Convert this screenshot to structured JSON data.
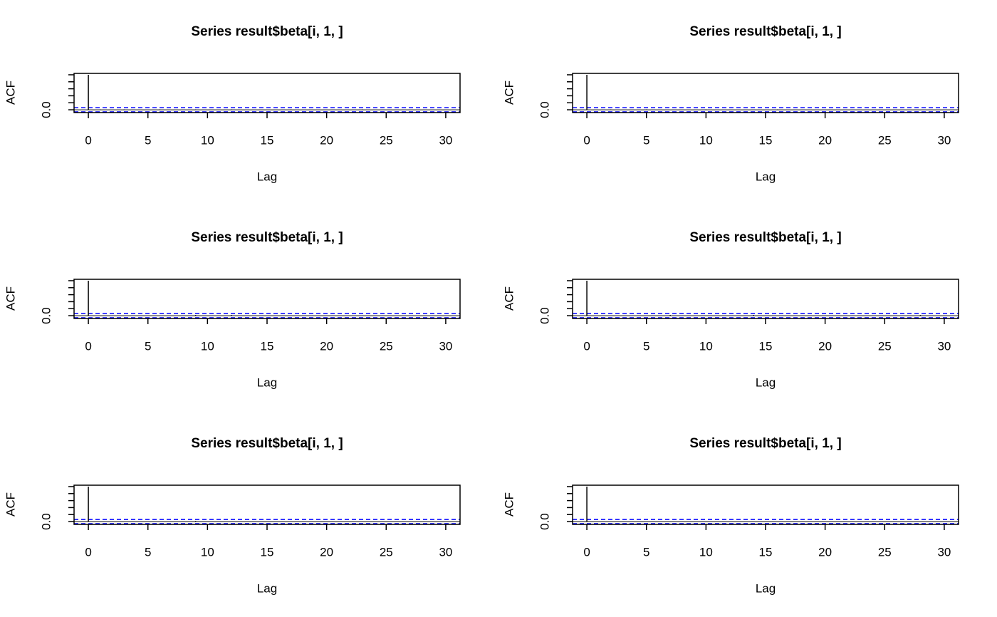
{
  "chart_data": [
    {
      "type": "acf",
      "title": "Series  result$beta[i, 1, ]",
      "xlabel": "Lag",
      "ylabel": "ACF",
      "x": [
        0,
        1,
        2,
        3,
        4,
        5,
        6,
        7,
        8,
        9,
        10,
        11,
        12,
        13,
        14,
        15,
        16,
        17,
        18,
        19,
        20,
        21,
        22,
        23,
        24,
        25,
        26,
        27,
        28,
        29,
        30
      ],
      "values": [
        1,
        0.01,
        0,
        0.01,
        0,
        0,
        0.01,
        0,
        0,
        0.01,
        0,
        0,
        0.01,
        0,
        0,
        0,
        0,
        0.01,
        0,
        0,
        0,
        0,
        0,
        0.01,
        0,
        0,
        0,
        0,
        0,
        0,
        0
      ],
      "color": "#000000",
      "ci": 0.06,
      "ci_color": "#0000ff",
      "xlim": [
        -1.2,
        31.2
      ],
      "ylim": [
        -0.08,
        1.04
      ],
      "xticks": [
        0,
        5,
        10,
        15,
        20,
        25,
        30
      ],
      "yticks": [
        {
          "value": 0,
          "label": "0.0"
        },
        {
          "value": 0.2,
          "label": null
        },
        {
          "value": 0.4,
          "label": null
        },
        {
          "value": 0.6,
          "label": null
        },
        {
          "value": 0.8,
          "label": null
        },
        {
          "value": 1,
          "label": null
        }
      ]
    },
    {
      "type": "acf",
      "title": "Series  result$beta[i, 1, ]",
      "xlabel": "Lag",
      "ylabel": "ACF",
      "x": [
        0,
        1,
        2,
        3,
        4,
        5,
        6,
        7,
        8,
        9,
        10,
        11,
        12,
        13,
        14,
        15,
        16,
        17,
        18,
        19,
        20,
        21,
        22,
        23,
        24,
        25,
        26,
        27,
        28,
        29,
        30
      ],
      "values": [
        1,
        0,
        0.01,
        0,
        0,
        0.01,
        0,
        0,
        0,
        0,
        0.01,
        0,
        0,
        0,
        0,
        0,
        0.01,
        0,
        0,
        0,
        0,
        0,
        0,
        0,
        0,
        0,
        0,
        0,
        0,
        0,
        0
      ],
      "color": "#000000",
      "ci": 0.06,
      "ci_color": "#0000ff",
      "xlim": [
        -1.2,
        31.2
      ],
      "ylim": [
        -0.08,
        1.04
      ],
      "xticks": [
        0,
        5,
        10,
        15,
        20,
        25,
        30
      ],
      "yticks": [
        {
          "value": 0,
          "label": "0.0"
        },
        {
          "value": 0.2,
          "label": null
        },
        {
          "value": 0.4,
          "label": null
        },
        {
          "value": 0.6,
          "label": null
        },
        {
          "value": 0.8,
          "label": null
        },
        {
          "value": 1,
          "label": null
        }
      ]
    },
    {
      "type": "acf",
      "title": "Series  result$beta[i, 1, ]",
      "xlabel": "Lag",
      "ylabel": "ACF",
      "x": [
        0,
        1,
        2,
        3,
        4,
        5,
        6,
        7,
        8,
        9,
        10,
        11,
        12,
        13,
        14,
        15,
        16,
        17,
        18,
        19,
        20,
        21,
        22,
        23,
        24,
        25,
        26,
        27,
        28,
        29,
        30
      ],
      "values": [
        1,
        0,
        0,
        0,
        0,
        0,
        0,
        0,
        0,
        0.02,
        0,
        0,
        0.02,
        0,
        0,
        0,
        0,
        0,
        0,
        0,
        0,
        0,
        0,
        0,
        0,
        0,
        0,
        0,
        0,
        0,
        0
      ],
      "color": "#000000",
      "ci": 0.06,
      "ci_color": "#0000ff",
      "xlim": [
        -1.2,
        31.2
      ],
      "ylim": [
        -0.08,
        1.04
      ],
      "xticks": [
        0,
        5,
        10,
        15,
        20,
        25,
        30
      ],
      "yticks": [
        {
          "value": 0,
          "label": "0.0"
        },
        {
          "value": 0.2,
          "label": null
        },
        {
          "value": 0.4,
          "label": null
        },
        {
          "value": 0.6,
          "label": null
        },
        {
          "value": 0.8,
          "label": null
        },
        {
          "value": 1,
          "label": null
        }
      ]
    },
    {
      "type": "acf",
      "title": "Series  result$beta[i, 1, ]",
      "xlabel": "Lag",
      "ylabel": "ACF",
      "x": [
        0,
        1,
        2,
        3,
        4,
        5,
        6,
        7,
        8,
        9,
        10,
        11,
        12,
        13,
        14,
        15,
        16,
        17,
        18,
        19,
        20,
        21,
        22,
        23,
        24,
        25,
        26,
        27,
        28,
        29,
        30
      ],
      "values": [
        1,
        0,
        0,
        0,
        0,
        0,
        0,
        0.02,
        0,
        0,
        0,
        0,
        0,
        0,
        0.02,
        0,
        0,
        0,
        0,
        0,
        0,
        0,
        0,
        0,
        0,
        0,
        0,
        0,
        0.02,
        0,
        0
      ],
      "color": "#000000",
      "ci": 0.06,
      "ci_color": "#0000ff",
      "xlim": [
        -1.2,
        31.2
      ],
      "ylim": [
        -0.08,
        1.04
      ],
      "xticks": [
        0,
        5,
        10,
        15,
        20,
        25,
        30
      ],
      "yticks": [
        {
          "value": 0,
          "label": "0.0"
        },
        {
          "value": 0.2,
          "label": null
        },
        {
          "value": 0.4,
          "label": null
        },
        {
          "value": 0.6,
          "label": null
        },
        {
          "value": 0.8,
          "label": null
        },
        {
          "value": 1,
          "label": null
        }
      ]
    },
    {
      "type": "acf",
      "title": "Series  result$beta[i, 1, ]",
      "xlabel": "Lag",
      "ylabel": "ACF",
      "x": [
        0,
        1,
        2,
        3,
        4,
        5,
        6,
        7,
        8,
        9,
        10,
        11,
        12,
        13,
        14,
        15,
        16,
        17,
        18,
        19,
        20,
        21,
        22,
        23,
        24,
        25,
        26,
        27,
        28,
        29,
        30
      ],
      "values": [
        1,
        0,
        0,
        0,
        0,
        0,
        0,
        0,
        0,
        0.02,
        0,
        0,
        0,
        0,
        0,
        0,
        0,
        0,
        0,
        0,
        0,
        0,
        0,
        0,
        0,
        0,
        0,
        0,
        0,
        0,
        0
      ],
      "color": "#000000",
      "ci": 0.06,
      "ci_color": "#0000ff",
      "xlim": [
        -1.2,
        31.2
      ],
      "ylim": [
        -0.08,
        1.04
      ],
      "xticks": [
        0,
        5,
        10,
        15,
        20,
        25,
        30
      ],
      "yticks": [
        {
          "value": 0,
          "label": "0.0"
        },
        {
          "value": 0.2,
          "label": null
        },
        {
          "value": 0.4,
          "label": null
        },
        {
          "value": 0.6,
          "label": null
        },
        {
          "value": 0.8,
          "label": null
        },
        {
          "value": 1,
          "label": null
        }
      ]
    },
    {
      "type": "acf",
      "title": "Series  result$beta[i, 1, ]",
      "xlabel": "Lag",
      "ylabel": "ACF",
      "x": [
        0,
        1,
        2,
        3,
        4,
        5,
        6,
        7,
        8,
        9,
        10,
        11,
        12,
        13,
        14,
        15,
        16,
        17,
        18,
        19,
        20,
        21,
        22,
        23,
        24,
        25,
        26,
        27,
        28,
        29,
        30
      ],
      "values": [
        1,
        0,
        0,
        0,
        0,
        0,
        0,
        0,
        0,
        0,
        0,
        0,
        0,
        0,
        0,
        0,
        0,
        0,
        0,
        0,
        0,
        0,
        0,
        0,
        0,
        0,
        0,
        0,
        0,
        0,
        0
      ],
      "color": "#000000",
      "ci": 0.06,
      "ci_color": "#0000ff",
      "xlim": [
        -1.2,
        31.2
      ],
      "ylim": [
        -0.08,
        1.04
      ],
      "xticks": [
        0,
        5,
        10,
        15,
        20,
        25,
        30
      ],
      "yticks": [
        {
          "value": 0,
          "label": "0.0"
        },
        {
          "value": 0.2,
          "label": null
        },
        {
          "value": 0.4,
          "label": null
        },
        {
          "value": 0.6,
          "label": null
        },
        {
          "value": 0.8,
          "label": null
        },
        {
          "value": 1,
          "label": null
        }
      ]
    }
  ]
}
